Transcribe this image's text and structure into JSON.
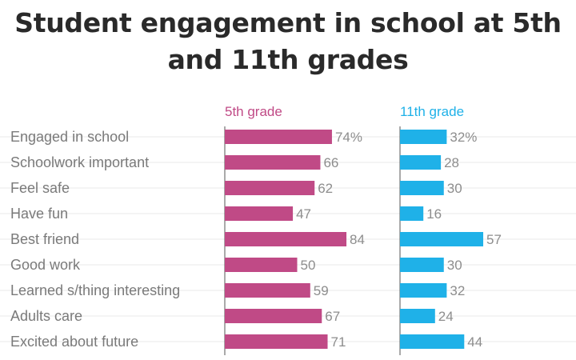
{
  "title": "Student engagement in school at 5th and 11th grades",
  "colors": {
    "grade5": "#c04a86",
    "grade11": "#1fb1e8",
    "label": "#7a7a7a",
    "value": "#8d8d8d",
    "grid": "#e8e8e8",
    "axis": "#555555"
  },
  "chart_data": {
    "type": "bar",
    "orientation": "horizontal",
    "title": "Student engagement in school at 5th and 11th grades",
    "categories": [
      "Engaged in school",
      "Schoolwork important",
      "Feel safe",
      "Have fun",
      "Best friend",
      "Good work",
      "Learned s/thing interesting",
      "Adults care",
      "Excited about future"
    ],
    "series": [
      {
        "name": "5th grade",
        "values": [
          74,
          66,
          62,
          47,
          84,
          50,
          59,
          67,
          71
        ],
        "labels": [
          "74%",
          "66",
          "62",
          "47",
          "84",
          "50",
          "59",
          "67",
          "71"
        ]
      },
      {
        "name": "11th grade",
        "values": [
          32,
          28,
          30,
          16,
          57,
          30,
          32,
          24,
          44
        ],
        "labels": [
          "32%",
          "28",
          "30",
          "16",
          "57",
          "30",
          "32",
          "24",
          "44"
        ]
      }
    ],
    "xlim": [
      0,
      100
    ],
    "unit": "%"
  }
}
